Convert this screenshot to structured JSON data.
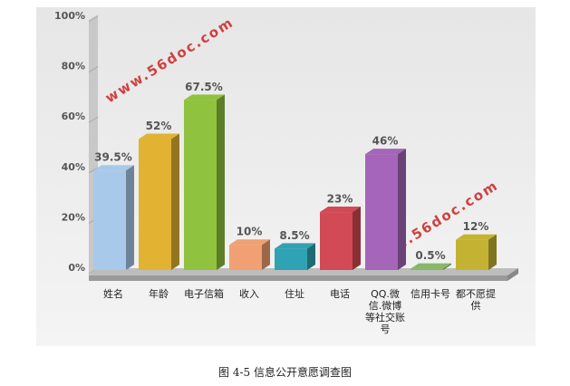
{
  "chart_data": {
    "type": "bar3d",
    "categories": [
      "姓名",
      "年龄",
      "电子信箱",
      "收入",
      "住址",
      "电话",
      "QQ.微信.微博等社交账号",
      "信用卡号",
      "都不愿提供"
    ],
    "values": [
      39.5,
      52,
      67.5,
      10,
      8.5,
      23,
      46,
      0.5,
      12
    ],
    "value_labels": [
      "39.5%",
      "52%",
      "67.5%",
      "10%",
      "8.5%",
      "23%",
      "46%",
      "0.5%",
      "12%"
    ],
    "colors": [
      "#a9c9ea",
      "#e2b232",
      "#8fc23e",
      "#f0a072",
      "#2fa3b3",
      "#d24a55",
      "#a565b8",
      "#86b866",
      "#c4b333"
    ],
    "ylim": [
      0,
      100
    ],
    "yticks": [
      {
        "value": 0,
        "label": "0%"
      },
      {
        "value": 20,
        "label": "20%"
      },
      {
        "value": 40,
        "label": "40%"
      },
      {
        "value": 60,
        "label": "60%"
      },
      {
        "value": 80,
        "label": "80%"
      },
      {
        "value": 100,
        "label": "100%"
      }
    ],
    "watermarks": [
      "www.56doc.com",
      "www.56doc.com"
    ],
    "caption": "图 4-5 信息公开意愿调查图"
  }
}
